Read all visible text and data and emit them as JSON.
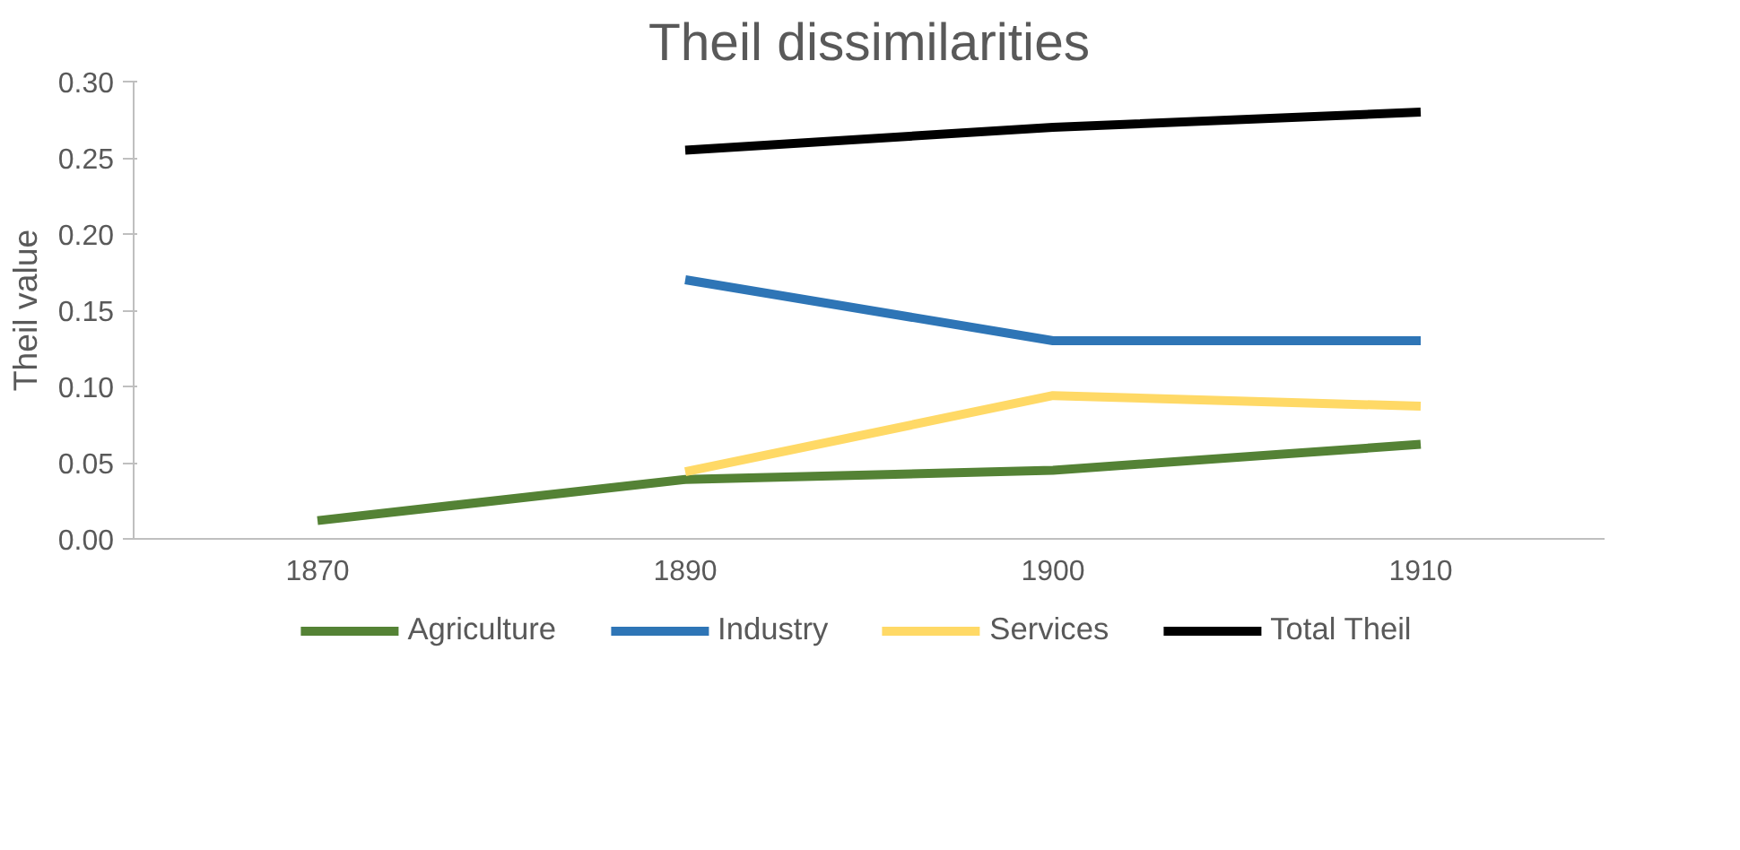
{
  "chart_data": {
    "type": "line",
    "title": "Theil dissimilarities",
    "ylabel": "Theil value",
    "categories": [
      "1870",
      "1890",
      "1900",
      "1910"
    ],
    "ylim": [
      0,
      0.3
    ],
    "yticks": [
      {
        "value": 0,
        "label": "0.00"
      },
      {
        "value": 0.05,
        "label": "0.05"
      },
      {
        "value": 0.1,
        "label": "0.10"
      },
      {
        "value": 0.15,
        "label": "0.15"
      },
      {
        "value": 0.2,
        "label": "0.20"
      },
      {
        "value": 0.25,
        "label": "0.25"
      },
      {
        "value": 0.3,
        "label": "0.30"
      }
    ],
    "series": [
      {
        "name": "Agriculture",
        "color": "#548235",
        "values": [
          0.012,
          0.039,
          0.045,
          0.062
        ]
      },
      {
        "name": "Industry",
        "color": "#2e75b6",
        "values": [
          null,
          0.17,
          0.13,
          0.13
        ]
      },
      {
        "name": "Services",
        "color": "#ffd966",
        "values": [
          null,
          0.044,
          0.094,
          0.087
        ]
      },
      {
        "name": "Total Theil",
        "color": "#000000",
        "values": [
          null,
          0.255,
          0.27,
          0.28
        ]
      }
    ],
    "grid": false,
    "legend": "bottom",
    "marker": "none",
    "line_style": "solid"
  }
}
